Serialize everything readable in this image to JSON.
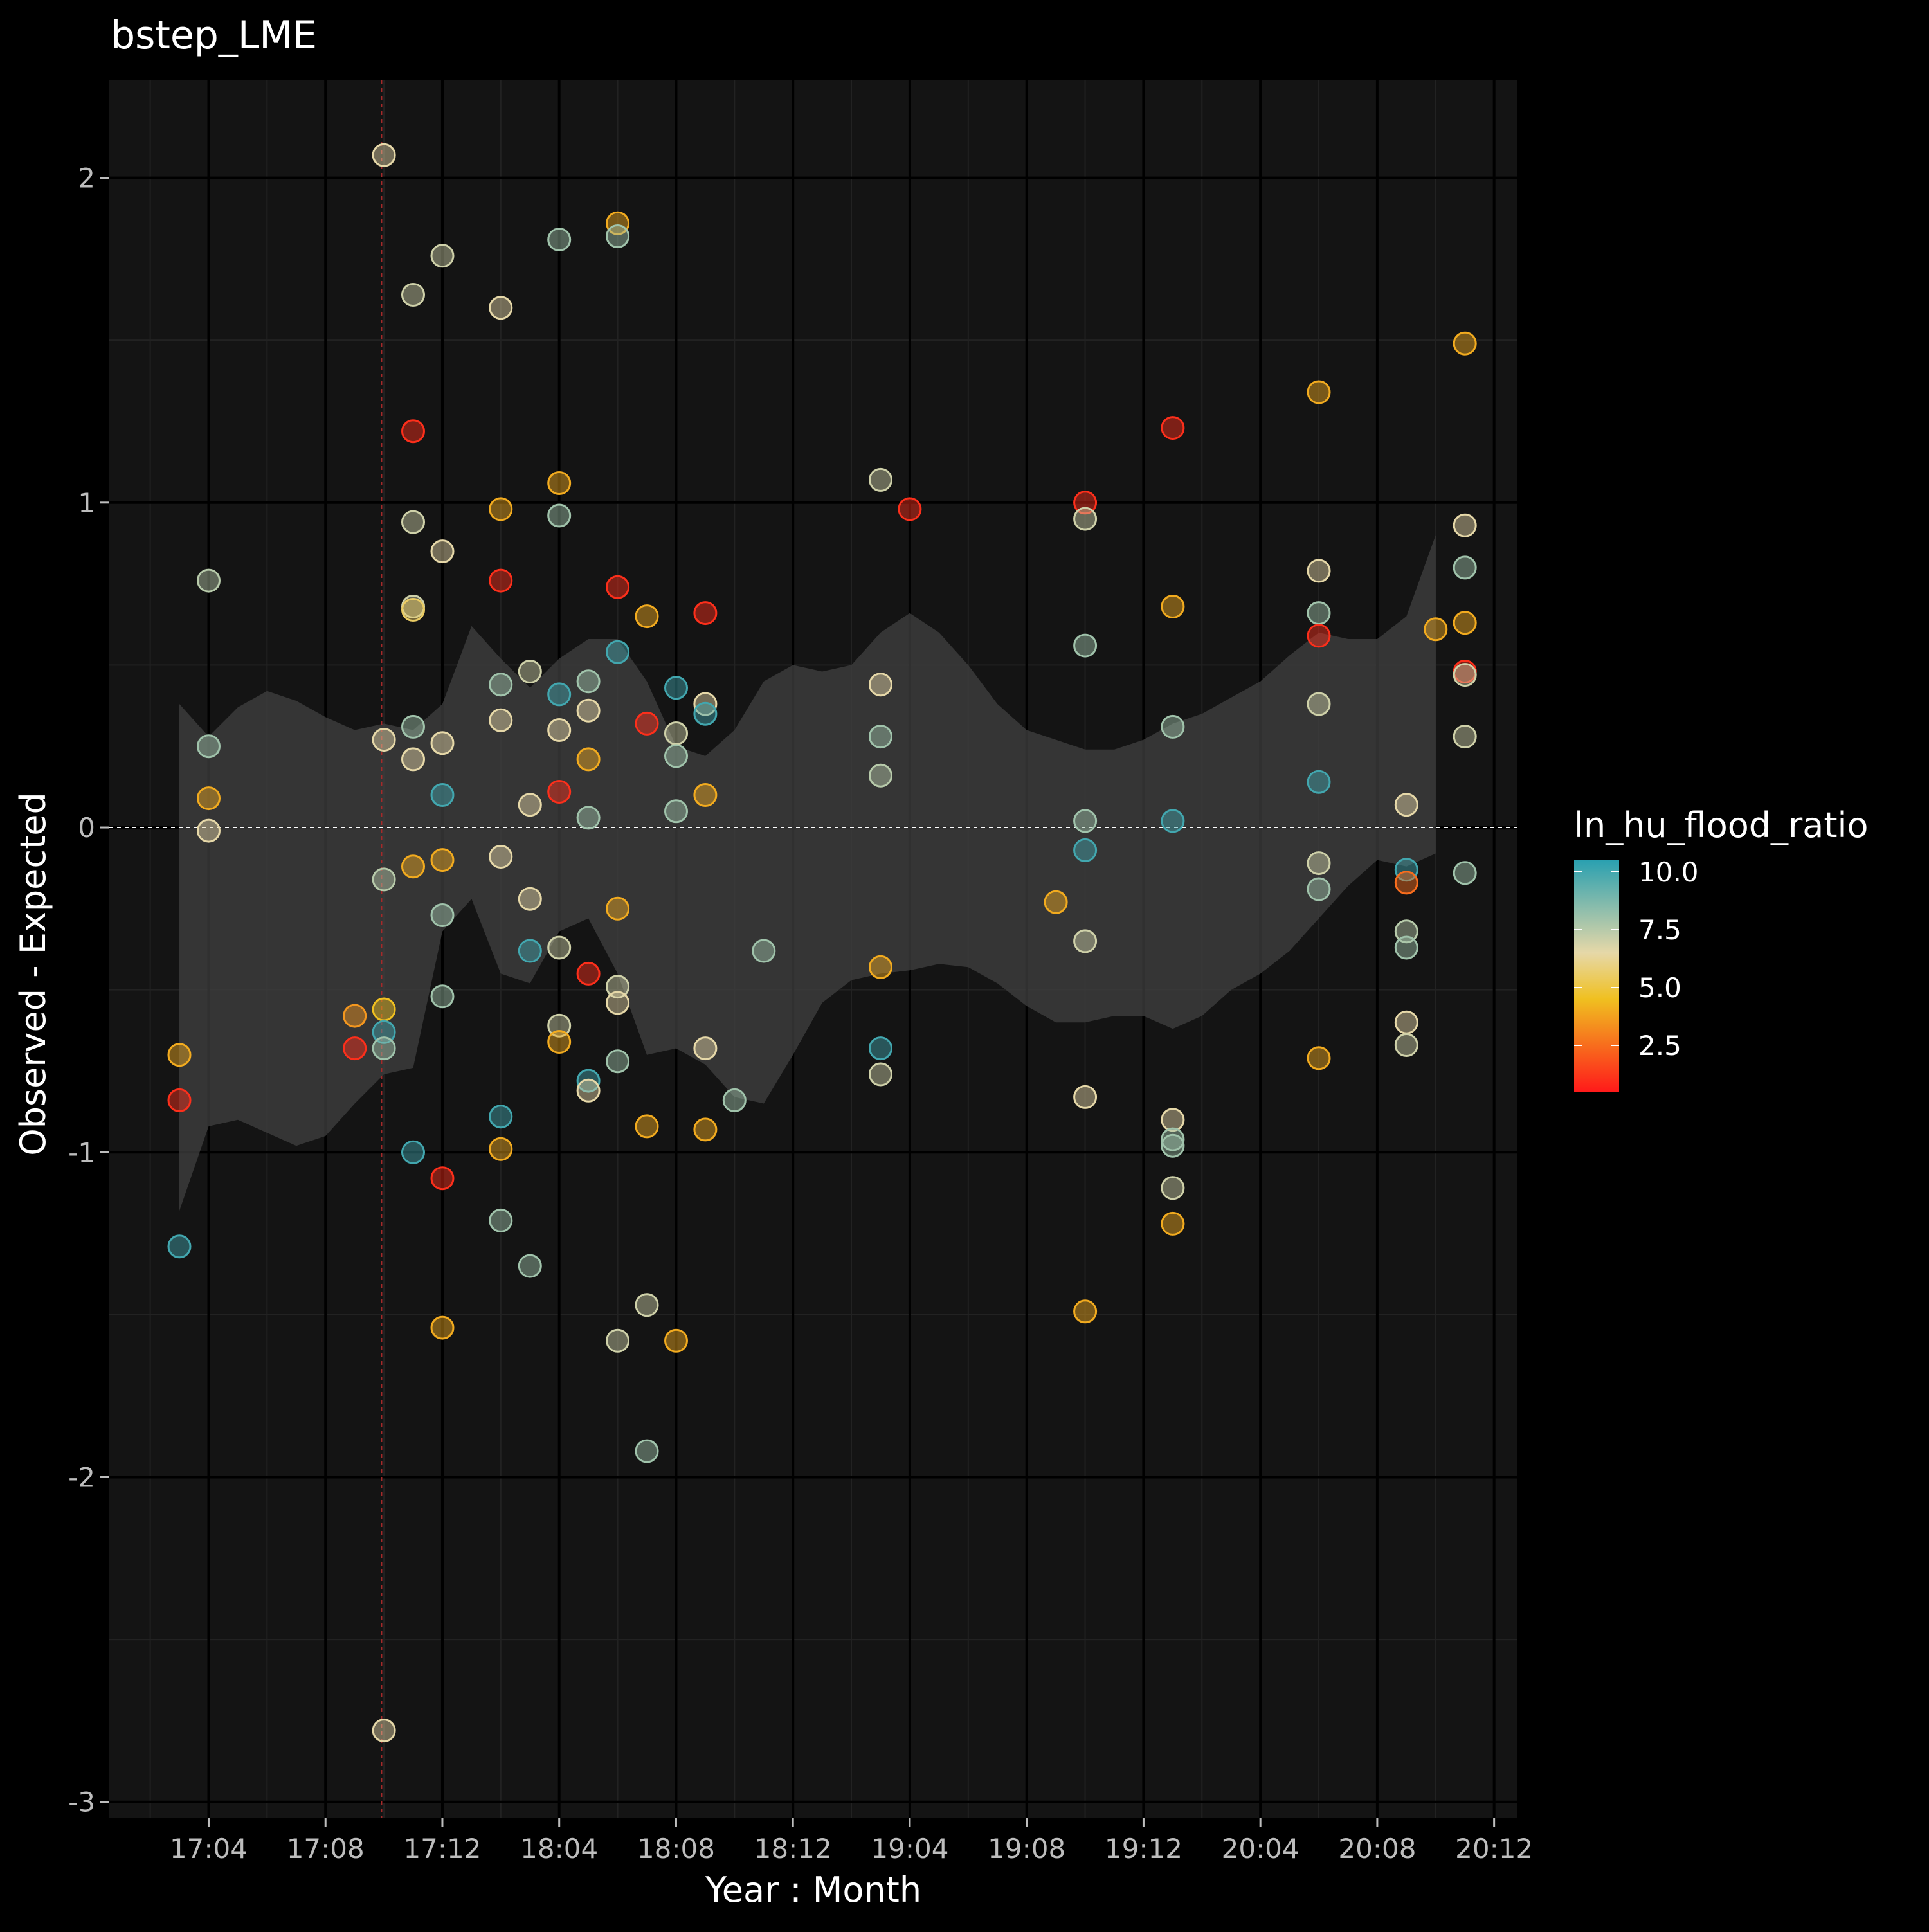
{
  "colors": {
    "background": "#000000",
    "panel": "#141414",
    "grid_major": "#000000",
    "grid_minor": "#222222",
    "ribbon": "#404040",
    "zero_line": "#ffffff",
    "event_line": "#a52a2a",
    "gradient_low": "#ff1a1a",
    "gradient_mid": "#f0c020",
    "gradient_mid2": "#e6d8a8",
    "gradient_high": "#2aa0b0"
  },
  "chart_data": {
    "type": "scatter",
    "title": "bstep_LME",
    "xlabel": "Year : Month",
    "ylabel": "Observed - Expected",
    "x_ticks": [
      "17:04",
      "17:08",
      "17:12",
      "18:04",
      "18:08",
      "18:12",
      "19:04",
      "19:08",
      "19:12",
      "20:04",
      "20:08",
      "20:12"
    ],
    "xlim": [
      0.15,
      12.2
    ],
    "y_ticks": [
      2,
      1,
      0,
      -1,
      -2,
      -3
    ],
    "ylim": [
      -3.05,
      2.3
    ],
    "grid": true,
    "zero_line": 0,
    "event_line_x": 2.48,
    "legend": {
      "title": "ln_hu_flood_ratio",
      "placement": "right",
      "ticks": [
        "10.0",
        "7.5",
        "5.0",
        "2.5"
      ],
      "tick_values": [
        10.0,
        7.5,
        5.0,
        2.5
      ],
      "range": [
        0.5,
        10.5
      ]
    },
    "ribbon": {
      "x": [
        0.75,
        1.0,
        1.25,
        1.5,
        1.75,
        2.0,
        2.25,
        2.5,
        2.75,
        3.0,
        3.25,
        3.5,
        3.75,
        4.0,
        4.25,
        4.5,
        4.75,
        5.0,
        5.25,
        5.5,
        5.75,
        6.0,
        6.25,
        6.5,
        6.75,
        7.0,
        7.25,
        7.5,
        7.75,
        8.0,
        8.25,
        8.5,
        8.75,
        9.0,
        9.25,
        9.5,
        9.75,
        10.0,
        10.25,
        10.5,
        10.75,
        11.0,
        11.25,
        11.5
      ],
      "upper": [
        0.38,
        0.28,
        0.37,
        0.42,
        0.39,
        0.34,
        0.3,
        0.32,
        0.3,
        0.38,
        0.62,
        0.52,
        0.43,
        0.52,
        0.58,
        0.58,
        0.45,
        0.25,
        0.22,
        0.3,
        0.45,
        0.5,
        0.48,
        0.5,
        0.6,
        0.66,
        0.6,
        0.5,
        0.38,
        0.3,
        0.27,
        0.24,
        0.24,
        0.27,
        0.32,
        0.35,
        0.4,
        0.45,
        0.53,
        0.6,
        0.58,
        0.58,
        0.65,
        0.9
      ],
      "lower": [
        -1.18,
        -0.92,
        -0.9,
        -0.94,
        -0.98,
        -0.95,
        -0.85,
        -0.76,
        -0.74,
        -0.32,
        -0.22,
        -0.45,
        -0.48,
        -0.32,
        -0.28,
        -0.45,
        -0.7,
        -0.68,
        -0.73,
        -0.83,
        -0.85,
        -0.7,
        -0.54,
        -0.47,
        -0.45,
        -0.44,
        -0.42,
        -0.43,
        -0.48,
        -0.55,
        -0.6,
        -0.6,
        -0.58,
        -0.58,
        -0.62,
        -0.58,
        -0.5,
        -0.45,
        -0.38,
        -0.28,
        -0.18,
        -0.1,
        -0.12,
        -0.08
      ]
    },
    "x_unit": "month index (tick k = k)",
    "points": [
      {
        "x": 0.75,
        "y": -1.29,
        "c": 10.0
      },
      {
        "x": 0.75,
        "y": -0.84,
        "c": 1.0
      },
      {
        "x": 0.75,
        "y": -0.7,
        "c": 4.0
      },
      {
        "x": 1.0,
        "y": 0.76,
        "c": 7.5
      },
      {
        "x": 1.0,
        "y": 0.25,
        "c": 8.0
      },
      {
        "x": 1.0,
        "y": 0.09,
        "c": 4.0
      },
      {
        "x": 1.0,
        "y": -0.01,
        "c": 6.5
      },
      {
        "x": 2.25,
        "y": -0.58,
        "c": 3.5
      },
      {
        "x": 2.25,
        "y": -0.68,
        "c": 1.0
      },
      {
        "x": 2.5,
        "y": 2.07,
        "c": 6.5
      },
      {
        "x": 2.5,
        "y": 0.27,
        "c": 6.5
      },
      {
        "x": 2.5,
        "y": -0.16,
        "c": 7.5
      },
      {
        "x": 2.5,
        "y": -0.56,
        "c": 4.5
      },
      {
        "x": 2.5,
        "y": -0.63,
        "c": 10.0
      },
      {
        "x": 2.5,
        "y": -0.68,
        "c": 8.0
      },
      {
        "x": 2.5,
        "y": -2.78,
        "c": 6.5
      },
      {
        "x": 2.75,
        "y": 1.64,
        "c": 7.0
      },
      {
        "x": 2.75,
        "y": 1.22,
        "c": 1.0
      },
      {
        "x": 2.75,
        "y": 0.94,
        "c": 7.0
      },
      {
        "x": 2.75,
        "y": 0.68,
        "c": 7.0
      },
      {
        "x": 2.75,
        "y": 0.67,
        "c": 5.5
      },
      {
        "x": 2.75,
        "y": 0.31,
        "c": 8.0
      },
      {
        "x": 2.75,
        "y": 0.21,
        "c": 6.5
      },
      {
        "x": 2.75,
        "y": -0.12,
        "c": 4.0
      },
      {
        "x": 2.75,
        "y": -1.0,
        "c": 10.0
      },
      {
        "x": 3.0,
        "y": 1.76,
        "c": 7.0
      },
      {
        "x": 3.0,
        "y": 0.85,
        "c": 6.5
      },
      {
        "x": 3.0,
        "y": 0.26,
        "c": 6.5
      },
      {
        "x": 3.0,
        "y": 0.1,
        "c": 10.0
      },
      {
        "x": 3.0,
        "y": -0.1,
        "c": 4.0
      },
      {
        "x": 3.0,
        "y": -0.27,
        "c": 8.0
      },
      {
        "x": 3.0,
        "y": -0.52,
        "c": 8.0
      },
      {
        "x": 3.0,
        "y": -1.08,
        "c": 1.0
      },
      {
        "x": 3.0,
        "y": -1.54,
        "c": 4.0
      },
      {
        "x": 3.5,
        "y": 1.6,
        "c": 6.5
      },
      {
        "x": 3.5,
        "y": 0.98,
        "c": 4.0
      },
      {
        "x": 3.5,
        "y": 0.76,
        "c": 1.0
      },
      {
        "x": 3.5,
        "y": 0.44,
        "c": 8.0
      },
      {
        "x": 3.5,
        "y": 0.33,
        "c": 6.5
      },
      {
        "x": 3.5,
        "y": -0.09,
        "c": 6.5
      },
      {
        "x": 3.5,
        "y": -0.89,
        "c": 10.0
      },
      {
        "x": 3.5,
        "y": -0.99,
        "c": 4.0
      },
      {
        "x": 3.5,
        "y": -1.21,
        "c": 8.0
      },
      {
        "x": 3.75,
        "y": 0.48,
        "c": 7.0
      },
      {
        "x": 3.75,
        "y": 0.07,
        "c": 6.5
      },
      {
        "x": 3.75,
        "y": -0.22,
        "c": 6.5
      },
      {
        "x": 3.75,
        "y": -0.38,
        "c": 10.0
      },
      {
        "x": 3.75,
        "y": -1.35,
        "c": 8.0
      },
      {
        "x": 4.0,
        "y": 1.81,
        "c": 8.0
      },
      {
        "x": 4.0,
        "y": 1.06,
        "c": 4.0
      },
      {
        "x": 4.0,
        "y": 0.96,
        "c": 8.0
      },
      {
        "x": 4.0,
        "y": 0.41,
        "c": 10.0
      },
      {
        "x": 4.0,
        "y": 0.3,
        "c": 6.5
      },
      {
        "x": 4.0,
        "y": 0.11,
        "c": 1.0
      },
      {
        "x": 4.0,
        "y": -0.37,
        "c": 7.0
      },
      {
        "x": 4.0,
        "y": -0.61,
        "c": 7.0
      },
      {
        "x": 4.0,
        "y": -0.66,
        "c": 4.0
      },
      {
        "x": 4.25,
        "y": 0.45,
        "c": 8.0
      },
      {
        "x": 4.25,
        "y": 0.36,
        "c": 6.5
      },
      {
        "x": 4.25,
        "y": 0.21,
        "c": 4.0
      },
      {
        "x": 4.25,
        "y": 0.03,
        "c": 8.0
      },
      {
        "x": 4.25,
        "y": -0.45,
        "c": 1.0
      },
      {
        "x": 4.25,
        "y": -0.78,
        "c": 10.0
      },
      {
        "x": 4.25,
        "y": -0.81,
        "c": 6.5
      },
      {
        "x": 4.5,
        "y": 1.86,
        "c": 4.0
      },
      {
        "x": 4.5,
        "y": 1.82,
        "c": 8.0
      },
      {
        "x": 4.5,
        "y": 0.74,
        "c": 1.0
      },
      {
        "x": 4.5,
        "y": 0.54,
        "c": 10.0
      },
      {
        "x": 4.5,
        "y": -0.25,
        "c": 4.0
      },
      {
        "x": 4.5,
        "y": -0.49,
        "c": 7.0
      },
      {
        "x": 4.5,
        "y": -0.54,
        "c": 6.5
      },
      {
        "x": 4.5,
        "y": -0.72,
        "c": 8.0
      },
      {
        "x": 4.5,
        "y": -1.58,
        "c": 7.0
      },
      {
        "x": 4.75,
        "y": 0.65,
        "c": 4.0
      },
      {
        "x": 4.75,
        "y": 0.32,
        "c": 1.0
      },
      {
        "x": 4.75,
        "y": -0.92,
        "c": 4.0
      },
      {
        "x": 4.75,
        "y": -1.47,
        "c": 7.0
      },
      {
        "x": 4.75,
        "y": -1.92,
        "c": 8.0
      },
      {
        "x": 5.0,
        "y": 0.43,
        "c": 10.0
      },
      {
        "x": 5.0,
        "y": 0.29,
        "c": 7.0
      },
      {
        "x": 5.0,
        "y": 0.22,
        "c": 8.0
      },
      {
        "x": 5.0,
        "y": 0.05,
        "c": 8.0
      },
      {
        "x": 5.0,
        "y": -1.58,
        "c": 4.0
      },
      {
        "x": 5.25,
        "y": 0.66,
        "c": 1.0
      },
      {
        "x": 5.25,
        "y": 0.38,
        "c": 6.5
      },
      {
        "x": 5.25,
        "y": 0.35,
        "c": 10.0
      },
      {
        "x": 5.25,
        "y": 0.1,
        "c": 4.0
      },
      {
        "x": 5.25,
        "y": -0.68,
        "c": 6.5
      },
      {
        "x": 5.25,
        "y": -0.93,
        "c": 4.0
      },
      {
        "x": 5.5,
        "y": -0.84,
        "c": 8.0
      },
      {
        "x": 5.75,
        "y": -0.38,
        "c": 8.0
      },
      {
        "x": 6.75,
        "y": 1.07,
        "c": 7.0
      },
      {
        "x": 6.75,
        "y": 0.44,
        "c": 6.5
      },
      {
        "x": 6.75,
        "y": 0.28,
        "c": 8.0
      },
      {
        "x": 6.75,
        "y": 0.16,
        "c": 7.5
      },
      {
        "x": 6.75,
        "y": -0.43,
        "c": 4.0
      },
      {
        "x": 6.75,
        "y": -0.68,
        "c": 10.0
      },
      {
        "x": 6.75,
        "y": -0.76,
        "c": 7.0
      },
      {
        "x": 7.0,
        "y": 0.98,
        "c": 1.0
      },
      {
        "x": 8.25,
        "y": -0.23,
        "c": 4.0
      },
      {
        "x": 8.5,
        "y": 1.0,
        "c": 1.0
      },
      {
        "x": 8.5,
        "y": 0.95,
        "c": 7.0
      },
      {
        "x": 8.5,
        "y": 0.56,
        "c": 8.0
      },
      {
        "x": 8.5,
        "y": 0.02,
        "c": 8.0
      },
      {
        "x": 8.5,
        "y": -0.07,
        "c": 10.0
      },
      {
        "x": 8.5,
        "y": -0.35,
        "c": 7.0
      },
      {
        "x": 8.5,
        "y": -0.83,
        "c": 6.5
      },
      {
        "x": 8.5,
        "y": -1.49,
        "c": 4.0
      },
      {
        "x": 9.25,
        "y": 1.23,
        "c": 1.0
      },
      {
        "x": 9.25,
        "y": 0.68,
        "c": 4.0
      },
      {
        "x": 9.25,
        "y": 0.31,
        "c": 8.0
      },
      {
        "x": 9.25,
        "y": 0.02,
        "c": 10.0
      },
      {
        "x": 9.25,
        "y": -0.9,
        "c": 6.5
      },
      {
        "x": 9.25,
        "y": -0.96,
        "c": 8.0
      },
      {
        "x": 9.25,
        "y": -0.98,
        "c": 8.0
      },
      {
        "x": 9.25,
        "y": -1.11,
        "c": 7.0
      },
      {
        "x": 9.25,
        "y": -1.22,
        "c": 4.0
      },
      {
        "x": 10.5,
        "y": 1.34,
        "c": 4.0
      },
      {
        "x": 10.5,
        "y": 0.79,
        "c": 6.5
      },
      {
        "x": 10.5,
        "y": 0.66,
        "c": 8.0
      },
      {
        "x": 10.5,
        "y": 0.59,
        "c": 1.0
      },
      {
        "x": 10.5,
        "y": 0.38,
        "c": 7.0
      },
      {
        "x": 10.5,
        "y": 0.14,
        "c": 10.0
      },
      {
        "x": 10.5,
        "y": -0.11,
        "c": 7.0
      },
      {
        "x": 10.5,
        "y": -0.19,
        "c": 8.0
      },
      {
        "x": 10.5,
        "y": -0.71,
        "c": 4.0
      },
      {
        "x": 11.25,
        "y": 0.07,
        "c": 6.5
      },
      {
        "x": 11.25,
        "y": -0.13,
        "c": 10.0
      },
      {
        "x": 11.25,
        "y": -0.17,
        "c": 2.5
      },
      {
        "x": 11.25,
        "y": -0.32,
        "c": 7.5
      },
      {
        "x": 11.25,
        "y": -0.37,
        "c": 8.0
      },
      {
        "x": 11.25,
        "y": -0.6,
        "c": 6.5
      },
      {
        "x": 11.25,
        "y": -0.67,
        "c": 7.0
      },
      {
        "x": 11.5,
        "y": 0.61,
        "c": 4.0
      },
      {
        "x": 11.75,
        "y": 1.49,
        "c": 4.0
      },
      {
        "x": 11.75,
        "y": 0.93,
        "c": 6.5
      },
      {
        "x": 11.75,
        "y": 0.8,
        "c": 8.0
      },
      {
        "x": 11.75,
        "y": 0.63,
        "c": 4.0
      },
      {
        "x": 11.75,
        "y": 0.48,
        "c": 1.0
      },
      {
        "x": 11.75,
        "y": 0.47,
        "c": 7.0
      },
      {
        "x": 11.75,
        "y": 0.28,
        "c": 7.0
      },
      {
        "x": 11.75,
        "y": -0.14,
        "c": 8.0
      }
    ]
  }
}
